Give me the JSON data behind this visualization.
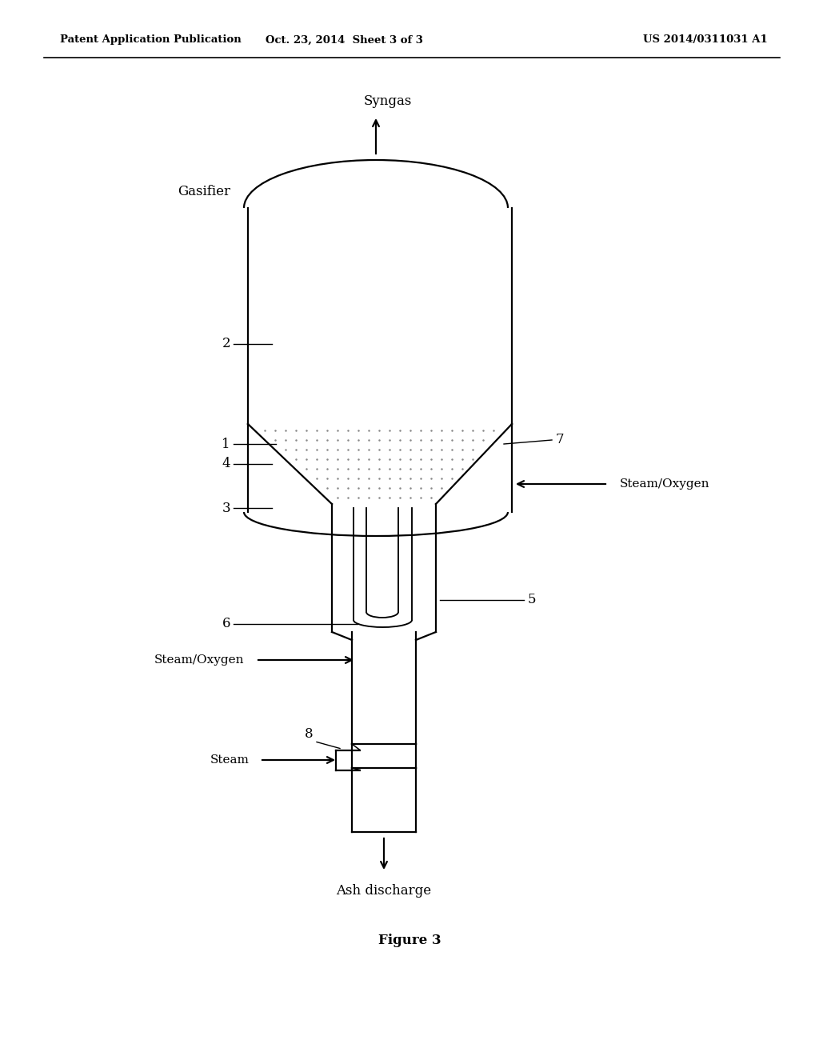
{
  "bg_color": "#ffffff",
  "header_left": "Patent Application Publication",
  "header_mid": "Oct. 23, 2014  Sheet 3 of 3",
  "header_right": "US 2014/0311031 A1",
  "figure_caption": "Figure 3",
  "label_gasifier": "Gasifier",
  "label_syngas": "Syngas",
  "label_ash_discharge": "Ash discharge",
  "label_steam_oxygen_top": "Steam/Oxygen",
  "label_steam_oxygen_bottom": "Steam/Oxygen",
  "label_steam": "Steam",
  "lw": 1.6,
  "dot_color": "#888888",
  "black": "#000000"
}
